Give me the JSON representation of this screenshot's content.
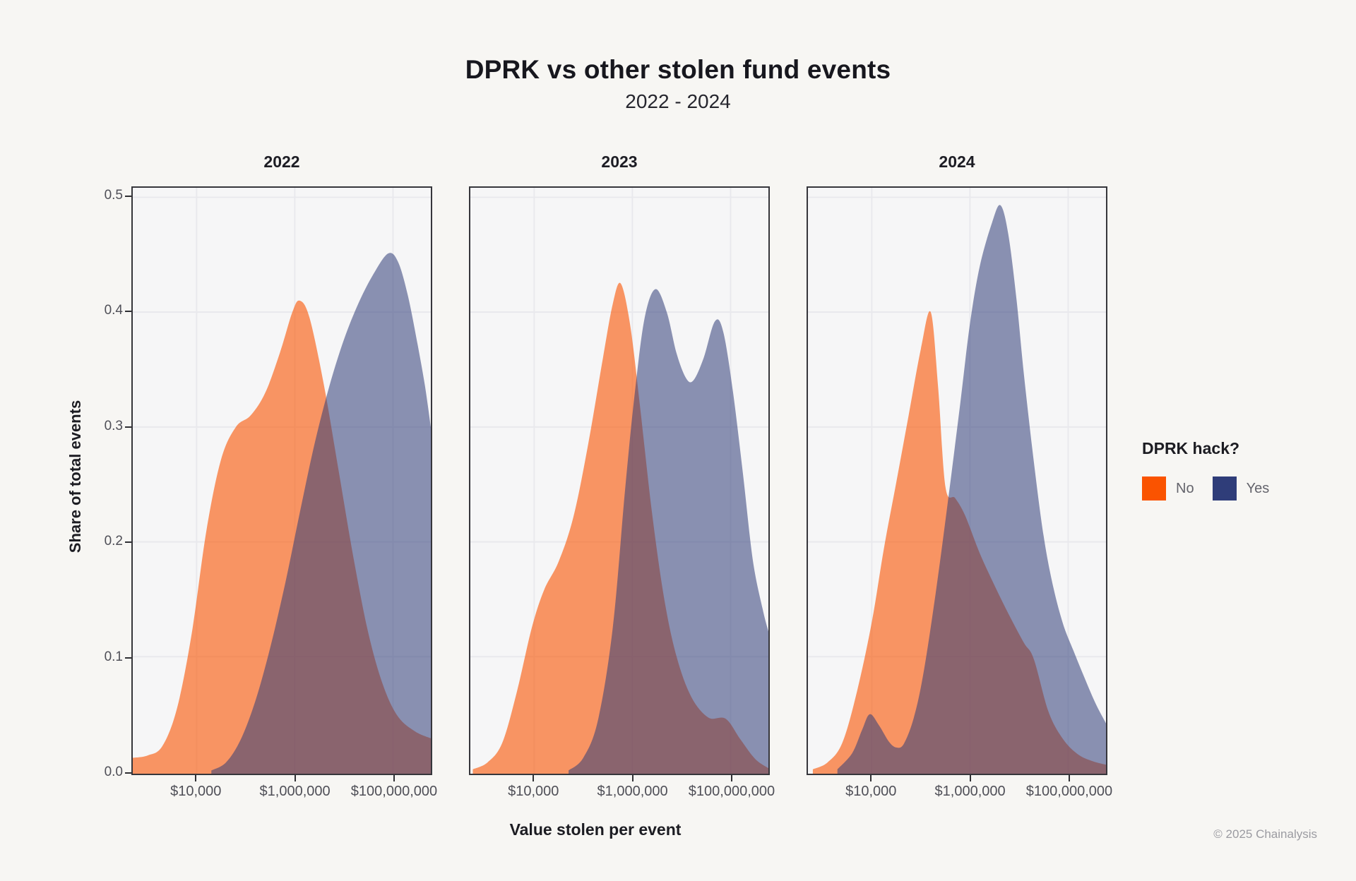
{
  "title": "DPRK vs other stolen fund events",
  "subtitle": "2022 - 2024",
  "x_axis_title": "Value stolen per event",
  "y_axis_title": "Share of total events",
  "footer": "© 2025 Chainalysis",
  "legend": {
    "title": "DPRK hack?",
    "items": [
      {
        "label": "No",
        "color": "#FA5300"
      },
      {
        "label": "Yes",
        "color": "#2F3D79"
      }
    ]
  },
  "style": {
    "page_bg": "#F7F6F3",
    "panel_bg": "#F6F6F7",
    "grid_color": "#E9E9ED",
    "border_color": "#36363B",
    "no_color": "#FA5300",
    "yes_color": "#2F3D79",
    "no_fill_opacity": 0.6,
    "yes_fill_opacity": 0.55
  },
  "chart_data": {
    "type": "area",
    "subtype": "density",
    "x_scale": "log10",
    "x_domain_log10": [
      2.7,
      8.77
    ],
    "ylim": [
      0,
      0.5
    ],
    "grid": true,
    "legend_position": "right",
    "y_ticks": [
      0.0,
      0.1,
      0.2,
      0.3,
      0.4,
      0.5
    ],
    "x_ticks": [
      {
        "log10": 4,
        "label": "$10,000"
      },
      {
        "log10": 6,
        "label": "$1,000,000"
      },
      {
        "log10": 8,
        "label": "$100,000,000"
      }
    ],
    "panels": [
      {
        "facet": "2022",
        "series": [
          {
            "name": "No",
            "points": [
              [
                2.7,
                0.012
              ],
              [
                3.0,
                0.014
              ],
              [
                3.3,
                0.022
              ],
              [
                3.6,
                0.055
              ],
              [
                3.9,
                0.12
              ],
              [
                4.2,
                0.21
              ],
              [
                4.5,
                0.272
              ],
              [
                4.8,
                0.3
              ],
              [
                5.1,
                0.31
              ],
              [
                5.4,
                0.33
              ],
              [
                5.7,
                0.365
              ],
              [
                5.95,
                0.4
              ],
              [
                6.1,
                0.41
              ],
              [
                6.3,
                0.395
              ],
              [
                6.6,
                0.335
              ],
              [
                6.9,
                0.26
              ],
              [
                7.2,
                0.185
              ],
              [
                7.5,
                0.12
              ],
              [
                7.8,
                0.075
              ],
              [
                8.1,
                0.048
              ],
              [
                8.45,
                0.035
              ],
              [
                8.77,
                0.029
              ]
            ]
          },
          {
            "name": "Yes",
            "points": [
              [
                4.3,
                0.001
              ],
              [
                4.6,
                0.008
              ],
              [
                4.9,
                0.028
              ],
              [
                5.2,
                0.062
              ],
              [
                5.5,
                0.108
              ],
              [
                5.8,
                0.163
              ],
              [
                6.1,
                0.225
              ],
              [
                6.4,
                0.285
              ],
              [
                6.7,
                0.335
              ],
              [
                7.0,
                0.376
              ],
              [
                7.3,
                0.408
              ],
              [
                7.6,
                0.433
              ],
              [
                7.9,
                0.451
              ],
              [
                8.1,
                0.444
              ],
              [
                8.3,
                0.415
              ],
              [
                8.5,
                0.372
              ],
              [
                8.65,
                0.336
              ],
              [
                8.77,
                0.3
              ]
            ]
          }
        ]
      },
      {
        "facet": "2023",
        "series": [
          {
            "name": "No",
            "points": [
              [
                2.75,
                0.002
              ],
              [
                3.05,
                0.008
              ],
              [
                3.35,
                0.025
              ],
              [
                3.65,
                0.07
              ],
              [
                3.95,
                0.125
              ],
              [
                4.2,
                0.158
              ],
              [
                4.5,
                0.183
              ],
              [
                4.8,
                0.222
              ],
              [
                5.1,
                0.285
              ],
              [
                5.4,
                0.36
              ],
              [
                5.6,
                0.407
              ],
              [
                5.76,
                0.425
              ],
              [
                5.95,
                0.39
              ],
              [
                6.15,
                0.32
              ],
              [
                6.4,
                0.225
              ],
              [
                6.65,
                0.15
              ],
              [
                6.9,
                0.1
              ],
              [
                7.2,
                0.065
              ],
              [
                7.55,
                0.047
              ],
              [
                7.9,
                0.046
              ],
              [
                8.2,
                0.028
              ],
              [
                8.5,
                0.011
              ],
              [
                8.77,
                0.003
              ]
            ]
          },
          {
            "name": "Yes",
            "points": [
              [
                4.7,
                0.001
              ],
              [
                5.0,
                0.012
              ],
              [
                5.3,
                0.045
              ],
              [
                5.6,
                0.125
              ],
              [
                5.85,
                0.245
              ],
              [
                6.05,
                0.33
              ],
              [
                6.25,
                0.395
              ],
              [
                6.47,
                0.42
              ],
              [
                6.7,
                0.4
              ],
              [
                6.9,
                0.364
              ],
              [
                7.1,
                0.342
              ],
              [
                7.25,
                0.341
              ],
              [
                7.45,
                0.36
              ],
              [
                7.68,
                0.392
              ],
              [
                7.85,
                0.383
              ],
              [
                8.05,
                0.33
              ],
              [
                8.25,
                0.26
              ],
              [
                8.45,
                0.185
              ],
              [
                8.65,
                0.142
              ],
              [
                8.77,
                0.122
              ]
            ]
          }
        ]
      },
      {
        "facet": "2024",
        "series": [
          {
            "name": "No",
            "points": [
              [
                2.8,
                0.002
              ],
              [
                3.1,
                0.008
              ],
              [
                3.4,
                0.025
              ],
              [
                3.7,
                0.07
              ],
              [
                4.0,
                0.13
              ],
              [
                4.25,
                0.195
              ],
              [
                4.5,
                0.252
              ],
              [
                4.75,
                0.31
              ],
              [
                5.0,
                0.368
              ],
              [
                5.2,
                0.4
              ],
              [
                5.35,
                0.335
              ],
              [
                5.5,
                0.248
              ],
              [
                5.7,
                0.238
              ],
              [
                5.9,
                0.223
              ],
              [
                6.2,
                0.19
              ],
              [
                6.5,
                0.162
              ],
              [
                6.8,
                0.136
              ],
              [
                7.1,
                0.112
              ],
              [
                7.3,
                0.098
              ],
              [
                7.6,
                0.052
              ],
              [
                7.9,
                0.028
              ],
              [
                8.2,
                0.015
              ],
              [
                8.5,
                0.009
              ],
              [
                8.77,
                0.006
              ]
            ]
          },
          {
            "name": "Yes",
            "points": [
              [
                3.3,
                0.002
              ],
              [
                3.6,
                0.016
              ],
              [
                3.8,
                0.036
              ],
              [
                3.96,
                0.05
              ],
              [
                4.15,
                0.04
              ],
              [
                4.35,
                0.026
              ],
              [
                4.5,
                0.021
              ],
              [
                4.65,
                0.024
              ],
              [
                4.85,
                0.046
              ],
              [
                5.05,
                0.085
              ],
              [
                5.3,
                0.155
              ],
              [
                5.55,
                0.235
              ],
              [
                5.8,
                0.32
              ],
              [
                6.0,
                0.39
              ],
              [
                6.2,
                0.44
              ],
              [
                6.45,
                0.478
              ],
              [
                6.62,
                0.493
              ],
              [
                6.78,
                0.468
              ],
              [
                6.95,
                0.41
              ],
              [
                7.1,
                0.345
              ],
              [
                7.3,
                0.27
              ],
              [
                7.5,
                0.205
              ],
              [
                7.7,
                0.16
              ],
              [
                7.9,
                0.128
              ],
              [
                8.1,
                0.106
              ],
              [
                8.3,
                0.085
              ],
              [
                8.55,
                0.06
              ],
              [
                8.77,
                0.042
              ]
            ]
          }
        ]
      }
    ]
  }
}
